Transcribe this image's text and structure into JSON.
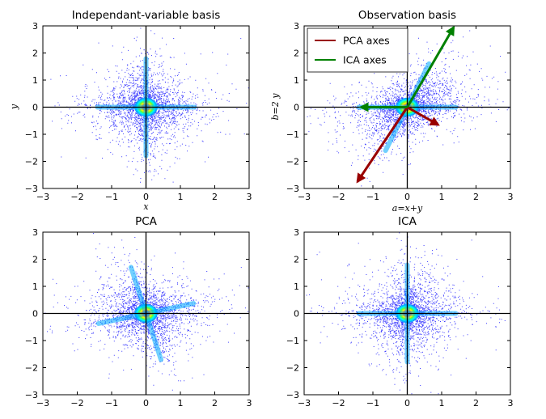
{
  "figure_background": "#ffffff",
  "point_color": "#1a1aff",
  "density_colors": [
    "#00aaff",
    "#00ffee",
    "#66ff33",
    "#ffee00",
    "#ff7700",
    "#dd0000"
  ],
  "axis_line_color": "#000000",
  "chart_data": [
    {
      "type": "scatter",
      "title": "Independant-variable basis",
      "xlabel": "x",
      "ylabel": "y",
      "xlim": [
        -3,
        3
      ],
      "ylim": [
        -3,
        3
      ],
      "xticks": [
        -3,
        -2,
        -1,
        0,
        1,
        2,
        3
      ],
      "yticks": [
        -3,
        -2,
        -1,
        0,
        1,
        2,
        3
      ],
      "xtick_labels": [
        "−3",
        "−2",
        "−1",
        "0",
        "1",
        "2",
        "3"
      ],
      "ytick_labels": [
        "−3",
        "−2",
        "−1",
        "0",
        "1",
        "2",
        "3"
      ],
      "grid": false,
      "zero_lines": true,
      "distribution": "heavy-tailed independent sources along x and y",
      "arm_angles_deg": [
        0,
        90
      ],
      "center": [
        0,
        0
      ]
    },
    {
      "type": "scatter",
      "title": "Observation basis",
      "xlabel": "a=x+y",
      "ylabel": "b=2 y",
      "xlim": [
        -3,
        3
      ],
      "ylim": [
        -3,
        3
      ],
      "xticks": [
        -3,
        -2,
        -1,
        0,
        1,
        2,
        3
      ],
      "yticks": [
        -3,
        -2,
        -1,
        0,
        1,
        2,
        3
      ],
      "xtick_labels": [
        "−3",
        "−2",
        "−1",
        "0",
        "1",
        "2",
        "3"
      ],
      "ytick_labels": [
        "−3",
        "−2",
        "−1",
        "0",
        "1",
        "2",
        "3"
      ],
      "grid": false,
      "zero_lines": true,
      "distribution": "mixed sources: a = x + y, b = 2y",
      "arm_angles_deg": [
        0,
        63.4
      ],
      "center": [
        0,
        0
      ],
      "legend": {
        "position": "top-left",
        "entries": [
          {
            "label": "PCA axes",
            "color": "#990000"
          },
          {
            "label": "ICA axes",
            "color": "#008000"
          }
        ]
      },
      "arrows": [
        {
          "series": "PCA axes",
          "from": [
            0,
            0
          ],
          "to": [
            -1.45,
            -2.75
          ]
        },
        {
          "series": "PCA axes",
          "from": [
            0,
            0
          ],
          "to": [
            0.9,
            -0.65
          ]
        },
        {
          "series": "ICA axes",
          "from": [
            0,
            0
          ],
          "to": [
            1.35,
            2.95
          ]
        },
        {
          "series": "ICA axes",
          "from": [
            0,
            0
          ],
          "to": [
            -1.35,
            0
          ]
        }
      ]
    },
    {
      "type": "scatter",
      "title": "PCA",
      "xlabel": "",
      "ylabel": "",
      "xlim": [
        -3,
        3
      ],
      "ylim": [
        -3,
        3
      ],
      "xticks": [
        -3,
        -2,
        -1,
        0,
        1,
        2,
        3
      ],
      "yticks": [
        -3,
        -2,
        -1,
        0,
        1,
        2,
        3
      ],
      "xtick_labels": [
        "−3",
        "−2",
        "−1",
        "0",
        "1",
        "2",
        "3"
      ],
      "ytick_labels": [
        "−3",
        "−2",
        "−1",
        "0",
        "1",
        "2",
        "3"
      ],
      "grid": false,
      "zero_lines": true,
      "distribution": "PCA-whitened observations; arms not aligned with axes",
      "arm_angles_deg": [
        12,
        108
      ],
      "center": [
        0,
        0
      ]
    },
    {
      "type": "scatter",
      "title": "ICA",
      "xlabel": "",
      "ylabel": "",
      "xlim": [
        -3,
        3
      ],
      "ylim": [
        -3,
        3
      ],
      "xticks": [
        -3,
        -2,
        -1,
        0,
        1,
        2,
        3
      ],
      "yticks": [
        -3,
        -2,
        -1,
        0,
        1,
        2,
        3
      ],
      "xtick_labels": [
        "−3",
        "−2",
        "−1",
        "0",
        "1",
        "2",
        "3"
      ],
      "ytick_labels": [
        "−3",
        "−2",
        "−1",
        "0",
        "1",
        "2",
        "3"
      ],
      "grid": false,
      "zero_lines": true,
      "distribution": "ICA-recovered sources aligned with axes",
      "arm_angles_deg": [
        0,
        90
      ],
      "center": [
        0,
        0
      ]
    }
  ]
}
